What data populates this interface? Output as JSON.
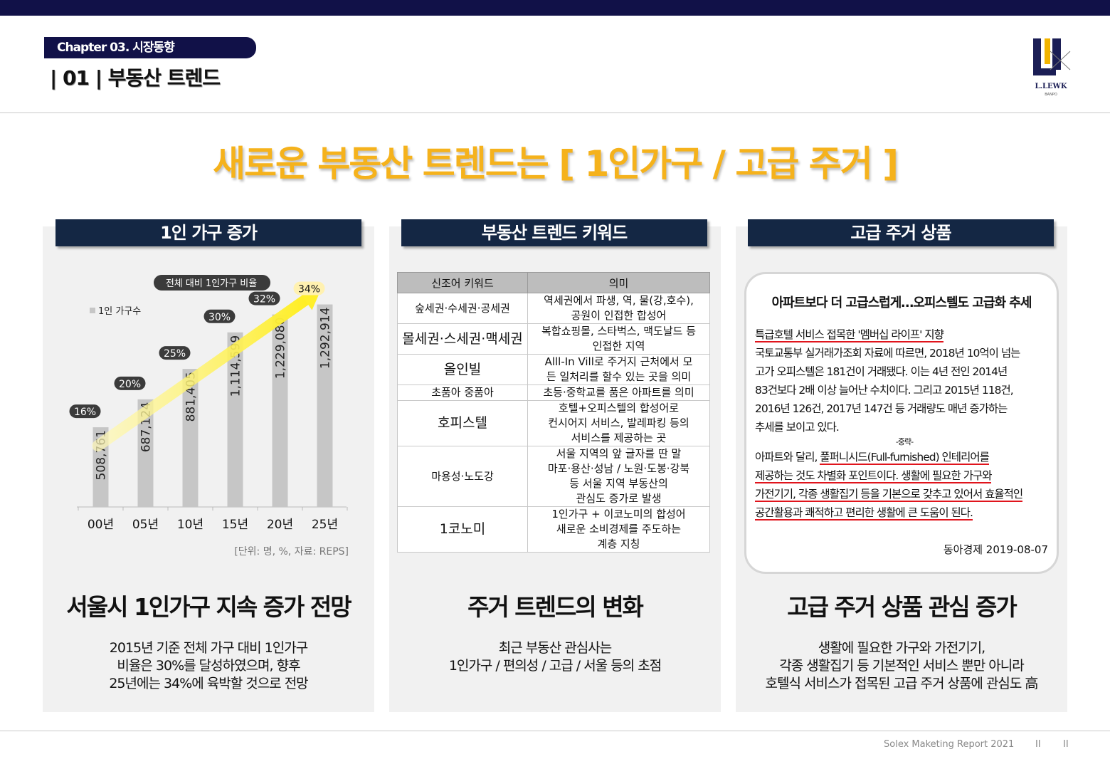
{
  "header": {
    "chapter": "Chapter 03. 시장동향",
    "section": "| 01 | 부동산 트렌드",
    "logo_text": "L.LEWK",
    "logo_sub": "BANPO"
  },
  "headline": "새로운 부동산 트렌드는 [ 1인가구 / 고급 주거 ]",
  "panels": [
    {
      "title": "1인 가구 증가",
      "big": "서울시 1인가구 지속 증가 전망",
      "small": [
        "2015년 기준 전체 가구 대비 1인가구",
        "비율은 30%를 달성하였으며, 향후",
        "25년에는 34%에 육박할 것으로 전망"
      ]
    },
    {
      "title": "부동산 트렌드 키워드",
      "big": "주거 트렌드의 변화",
      "small": [
        "최근 부동산 관심사는",
        "1인가구 / 편의성 / 고급 / 서울 등의 초점"
      ]
    },
    {
      "title": "고급 주거 상품",
      "big": "고급 주거 상품 관심 증가",
      "small": [
        "생활에 필요한 가구와 가전기기,",
        "각종 생활집기 등 기본적인 서비스 뿐만 아니라",
        "호텔식 서비스가 접목된 고급 주거 상품에 관심도 高"
      ]
    }
  ],
  "chart_data": {
    "type": "bar",
    "title": "전체 대비 1인가구 비율",
    "legend": "1인 가구수",
    "categories": [
      "00년",
      "05년",
      "10년",
      "15년",
      "20년",
      "25년"
    ],
    "values": [
      508761,
      687124,
      881405,
      1114599,
      1229080,
      1292914
    ],
    "value_labels": [
      "508,761",
      "687,124",
      "881,405",
      "1,114,599",
      "1,229,080",
      "1,292,914"
    ],
    "ratios": [
      "16%",
      "20%",
      "25%",
      "30%",
      "32%",
      "34%"
    ],
    "ylim": [
      0,
      1500000
    ],
    "note": "[단위: 명, %, 자료: REPS]",
    "colors": {
      "bar": "#c6c6c6",
      "badge": "#3b3b3b",
      "highlight": "#fff1b0",
      "arrow": "#ffef2a"
    }
  },
  "keywords": {
    "headers": [
      "신조어 키워드",
      "의미"
    ],
    "rows": [
      {
        "k": "숲세권·수세권·공세권",
        "m": [
          "역세권에서 파생, 역, 물(강,호수),",
          "공원이 인접한 합성어"
        ],
        "lg": false
      },
      {
        "k": "몰세권·스세권·맥세권",
        "m": [
          "복합쇼핑몰, 스타벅스, 맥도날드 등",
          "인접한 지역"
        ],
        "lg": true
      },
      {
        "k": "올인빌",
        "m": [
          "Alll-In Vill로 주거지 근처에서 모",
          "든 일처리를 할수 있는 곳을 의미"
        ],
        "lg": true
      },
      {
        "k": "초품아 중품아",
        "m": [
          "초등·중학교를 품은 아파트를 의미"
        ],
        "lg": false
      },
      {
        "k": "호피스텔",
        "m": [
          "호텔+오피스텔의 합성어로",
          "컨시어지 서비스, 발레파킹 등의",
          "서비스를 제공하는 곳"
        ],
        "lg": true
      },
      {
        "k": "마용성·노도강",
        "m": [
          "서울 지역의 앞 글자를 딴 말",
          "마포·용산·성남 / 노원·도봉·강북",
          "등 서울 지역 부동산의",
          "관심도 증가로 발생"
        ],
        "lg": false
      },
      {
        "k": "1코노미",
        "m": [
          "1인가구 + 이코노미의 합성어",
          "새로운 소비경제를 주도하는",
          "계층 지칭"
        ],
        "lg": true
      }
    ]
  },
  "article": {
    "title": "아파트보다 더 고급스럽게…오피스텔도 고급화 추세",
    "subtitle": "특급호텔 서비스 접목한 '멤버십 라이프' 지향",
    "p1": [
      "국토교통부 실거래가조회 자료에 따르면, 2018년 10억이 넘는",
      "고가 오피스텔은 181건이 거래됐다. 이는 4년 전인 2014년",
      "83건보다 2배 이상 늘어난 수치이다. 그리고 2015년 118건,",
      "2016년 126건, 2017년 147건 등 거래량도 매년 증가하는",
      "추세를 보이고 있다."
    ],
    "mid": "-중략-",
    "p2_a": "아파트와 달리, ",
    "p2_b": "풀퍼니시드(Full-furnished) 인테리어를",
    "p2": [
      "제공하는 것도 차별화 포인트이다. 생활에 필요한 가구와",
      "가전기기, 각종 생활집기 등을 기본으로 갖추고 있어서 효율적인",
      "공간활용과 쾌적하고 편리한 생활에 큰 도움이 된다."
    ],
    "source": "동아경제  2019-08-07"
  },
  "footer": {
    "text": "Solex Maketing Report 2021",
    "sep1": "II",
    "sep2": "II"
  }
}
